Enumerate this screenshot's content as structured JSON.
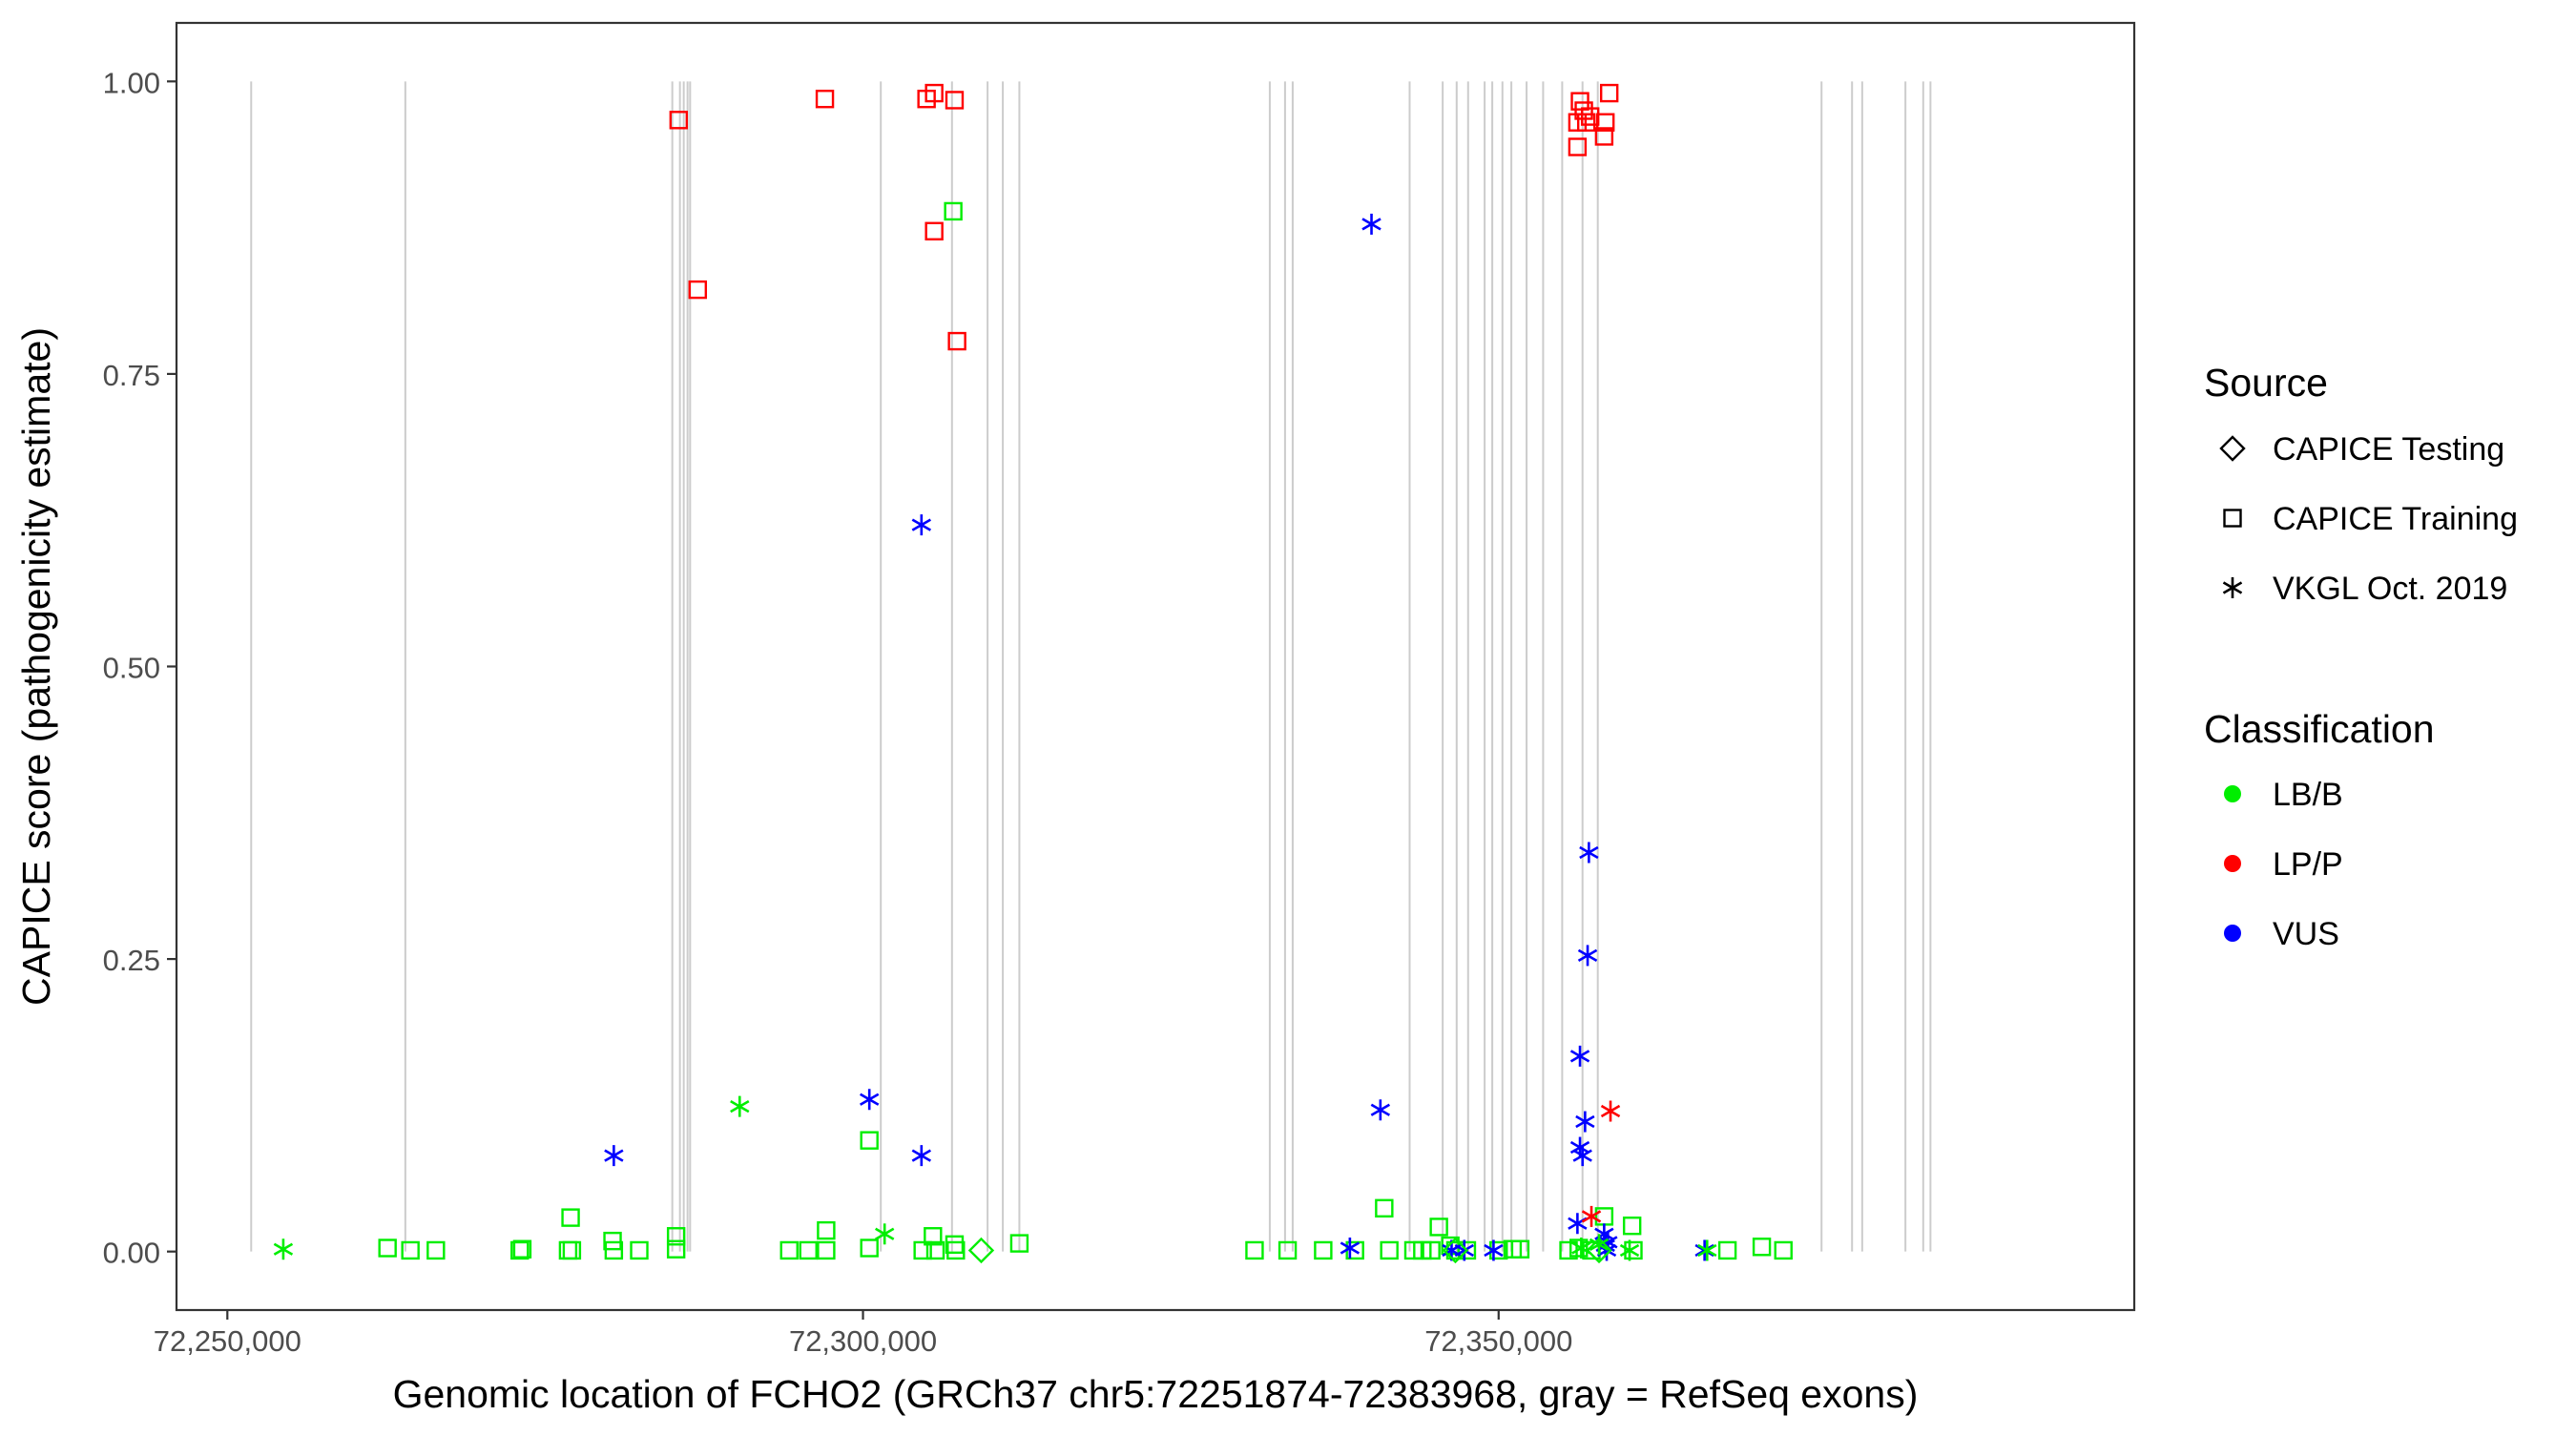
{
  "chart_data": {
    "type": "scatter",
    "title": "",
    "xlabel": "Genomic location of FCHO2 (GRCh37 chr5:72251874-72383968, gray = RefSeq exons)",
    "ylabel": "CAPICE score (pathogenicity estimate)",
    "xlim": [
      72246000,
      72400000
    ],
    "ylim": [
      -0.05,
      1.05
    ],
    "x_ticks": [
      72250000,
      72300000,
      72350000
    ],
    "x_tick_labels": [
      "72,250,000",
      "72,300,000",
      "72,350,000"
    ],
    "y_ticks": [
      0.0,
      0.25,
      0.5,
      0.75,
      1.0
    ],
    "y_tick_labels": [
      "0.00",
      "0.25",
      "0.50",
      "0.75",
      "1.00"
    ],
    "grid": false,
    "exon_lines": [
      72251874,
      72264000,
      72285000,
      72285600,
      72285900,
      72286200,
      72286400,
      72301400,
      72307000,
      72309800,
      72311000,
      72312300,
      72332000,
      72333200,
      72333800,
      72343000,
      72345600,
      72346700,
      72347600,
      72348900,
      72349500,
      72350300,
      72351000,
      72352200,
      72353500,
      72355000,
      72356600,
      72357800,
      72375400,
      72377800,
      72378600,
      72382000,
      72383400,
      72383968
    ],
    "legend": {
      "position": "right",
      "source_title": "Source",
      "source_items": [
        {
          "label": "CAPICE Testing",
          "shape": "diamond"
        },
        {
          "label": "CAPICE Training",
          "shape": "square"
        },
        {
          "label": "VKGL Oct. 2019",
          "shape": "asterisk"
        }
      ],
      "class_title": "Classification",
      "class_items": [
        {
          "label": "LB/B",
          "color": "#00ee00"
        },
        {
          "label": "LP/P",
          "color": "#ff0000"
        },
        {
          "label": "VUS",
          "color": "#0000ff"
        }
      ]
    },
    "colors": {
      "LB/B": "#00ee00",
      "LP/P": "#ff0000",
      "VUS": "#0000ff",
      "exon": "#cccccc"
    },
    "series": [
      {
        "name": "CAPICE Training",
        "shape": "square",
        "points": [
          [
            72285500,
            0.967,
            "LP/P"
          ],
          [
            72287000,
            0.822,
            "LP/P"
          ],
          [
            72297000,
            0.985,
            "LP/P"
          ],
          [
            72305000,
            0.985,
            "LP/P"
          ],
          [
            72305600,
            0.99,
            "LP/P"
          ],
          [
            72305600,
            0.872,
            "LP/P"
          ],
          [
            72307200,
            0.984,
            "LP/P"
          ],
          [
            72307400,
            0.778,
            "LP/P"
          ],
          [
            72356200,
            0.965,
            "LP/P"
          ],
          [
            72356400,
            0.983,
            "LP/P"
          ],
          [
            72356700,
            0.975,
            "LP/P"
          ],
          [
            72356900,
            0.965,
            "LP/P"
          ],
          [
            72356200,
            0.944,
            "LP/P"
          ],
          [
            72357200,
            0.97,
            "LP/P"
          ],
          [
            72358400,
            0.965,
            "LP/P"
          ],
          [
            72358700,
            0.99,
            "LP/P"
          ],
          [
            72358300,
            0.953,
            "LP/P"
          ],
          [
            72307100,
            0.889,
            "LB/B"
          ],
          [
            72300500,
            0.095,
            "LB/B"
          ],
          [
            72341000,
            0.037,
            "LB/B"
          ],
          [
            72277000,
            0.029,
            "LB/B"
          ],
          [
            72262600,
            0.003,
            "LB/B"
          ],
          [
            72264400,
            0.001,
            "LB/B"
          ],
          [
            72266400,
            0.001,
            "LB/B"
          ],
          [
            72273000,
            0.001,
            "LB/B"
          ],
          [
            72273200,
            0.002,
            "LB/B"
          ],
          [
            72276800,
            0.001,
            "LB/B"
          ],
          [
            72277100,
            0.001,
            "LB/B"
          ],
          [
            72280300,
            0.009,
            "LB/B"
          ],
          [
            72280400,
            0.001,
            "LB/B"
          ],
          [
            72282400,
            0.001,
            "LB/B"
          ],
          [
            72285300,
            0.013,
            "LB/B"
          ],
          [
            72285300,
            0.002,
            "LB/B"
          ],
          [
            72294200,
            0.001,
            "LB/B"
          ],
          [
            72295700,
            0.001,
            "LB/B"
          ],
          [
            72297100,
            0.018,
            "LB/B"
          ],
          [
            72297100,
            0.001,
            "LB/B"
          ],
          [
            72300500,
            0.003,
            "LB/B"
          ],
          [
            72304700,
            0.001,
            "LB/B"
          ],
          [
            72305500,
            0.013,
            "LB/B"
          ],
          [
            72305700,
            0.001,
            "LB/B"
          ],
          [
            72307200,
            0.006,
            "LB/B"
          ],
          [
            72307300,
            0.001,
            "LB/B"
          ],
          [
            72312300,
            0.007,
            "LB/B"
          ],
          [
            72330800,
            0.001,
            "LB/B"
          ],
          [
            72333400,
            0.001,
            "LB/B"
          ],
          [
            72336200,
            0.001,
            "LB/B"
          ],
          [
            72338700,
            0.001,
            "LB/B"
          ],
          [
            72341400,
            0.001,
            "LB/B"
          ],
          [
            72343300,
            0.001,
            "LB/B"
          ],
          [
            72344000,
            0.001,
            "LB/B"
          ],
          [
            72344700,
            0.001,
            "LB/B"
          ],
          [
            72345300,
            0.021,
            "LB/B"
          ],
          [
            72346200,
            0.005,
            "LB/B"
          ],
          [
            72346600,
            0.001,
            "LB/B"
          ],
          [
            72347500,
            0.001,
            "LB/B"
          ],
          [
            72350000,
            0.001,
            "LB/B"
          ],
          [
            72351100,
            0.002,
            "LB/B"
          ],
          [
            72351700,
            0.002,
            "LB/B"
          ],
          [
            72355500,
            0.001,
            "LB/B"
          ],
          [
            72356300,
            0.003,
            "LB/B"
          ],
          [
            72357300,
            0.001,
            "LB/B"
          ],
          [
            72358300,
            0.03,
            "LB/B"
          ],
          [
            72360500,
            0.022,
            "LB/B"
          ],
          [
            72360600,
            0.001,
            "LB/B"
          ],
          [
            72368000,
            0.001,
            "LB/B"
          ],
          [
            72370700,
            0.004,
            "LB/B"
          ],
          [
            72372400,
            0.001,
            "LB/B"
          ]
        ]
      },
      {
        "name": "VKGL Oct. 2019",
        "shape": "asterisk",
        "points": [
          [
            72340000,
            0.878,
            "VUS"
          ],
          [
            72304600,
            0.621,
            "VUS"
          ],
          [
            72300500,
            0.13,
            "VUS"
          ],
          [
            72340700,
            0.121,
            "VUS"
          ],
          [
            72280400,
            0.082,
            "VUS"
          ],
          [
            72304600,
            0.082,
            "VUS"
          ],
          [
            72357100,
            0.341,
            "VUS"
          ],
          [
            72357000,
            0.253,
            "VUS"
          ],
          [
            72356400,
            0.167,
            "VUS"
          ],
          [
            72356800,
            0.111,
            "VUS"
          ],
          [
            72356400,
            0.089,
            "VUS"
          ],
          [
            72356600,
            0.082,
            "VUS"
          ],
          [
            72356200,
            0.024,
            "VUS"
          ],
          [
            72358300,
            0.015,
            "VUS"
          ],
          [
            72358400,
            0.005,
            "VUS"
          ],
          [
            72358500,
            0.001,
            "VUS"
          ],
          [
            72358600,
            0.008,
            "VUS"
          ],
          [
            72338300,
            0.003,
            "VUS"
          ],
          [
            72346300,
            0.001,
            "VUS"
          ],
          [
            72347300,
            0.001,
            "VUS"
          ],
          [
            72349600,
            0.001,
            "VUS"
          ],
          [
            72366200,
            0.001,
            "VUS"
          ],
          [
            72358800,
            0.12,
            "LP/P"
          ],
          [
            72357300,
            0.03,
            "LP/P"
          ],
          [
            72254400,
            0.002,
            "LB/B"
          ],
          [
            72290300,
            0.124,
            "LB/B"
          ],
          [
            72301700,
            0.015,
            "LB/B"
          ],
          [
            72356500,
            0.003,
            "LB/B"
          ],
          [
            72357900,
            0.006,
            "LB/B"
          ],
          [
            72360300,
            0.001,
            "LB/B"
          ],
          [
            72366400,
            0.001,
            "LB/B"
          ]
        ]
      },
      {
        "name": "CAPICE Testing",
        "shape": "diamond",
        "points": [
          [
            72309300,
            0.001,
            "LB/B"
          ],
          [
            72346600,
            0.001,
            "LB/B"
          ],
          [
            72357900,
            0.001,
            "LB/B"
          ]
        ]
      }
    ]
  }
}
